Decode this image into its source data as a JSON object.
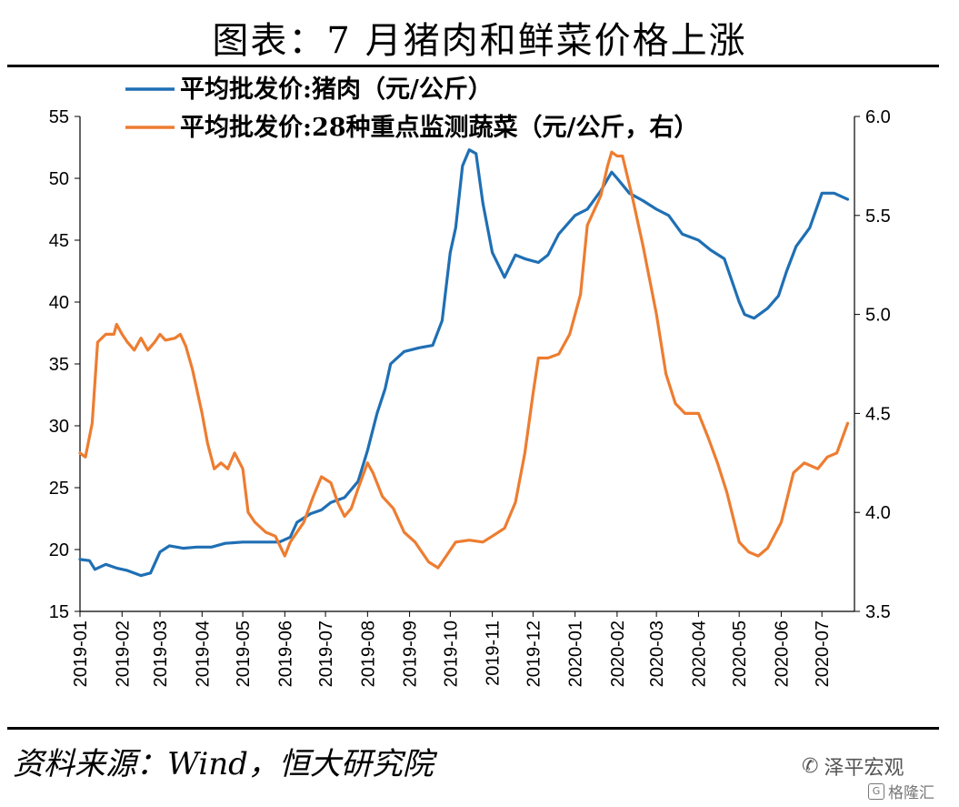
{
  "title": "图表：7 月猪肉和鲜菜价格上涨",
  "source": "资料来源：Wind，恒大研究院",
  "watermark": {
    "text": "泽平宏观",
    "logo_text": "格隆汇",
    "logo_mark": "G"
  },
  "chart_data": {
    "type": "line",
    "legend_placement": "top-left",
    "grid": false,
    "x_ticks": [
      "2019-01",
      "2019-02",
      "2019-03",
      "2019-04",
      "2019-05",
      "2019-06",
      "2019-07",
      "2019-08",
      "2019-09",
      "2019-10",
      "2019-11",
      "2019-12",
      "2020-01",
      "2020-02",
      "2020-03",
      "2020-04",
      "2020-05",
      "2020-06",
      "2020-07"
    ],
    "y_left": {
      "ticks": [
        "15",
        "20",
        "25",
        "30",
        "35",
        "40",
        "45",
        "50",
        "55"
      ],
      "lim": [
        15,
        55
      ]
    },
    "y_right": {
      "ticks": [
        "3.5",
        "4.0",
        "4.5",
        "5.0",
        "5.5",
        "6.0"
      ],
      "lim": [
        3.5,
        6.0
      ]
    },
    "series": [
      {
        "name": "平均批发价:猪肉（元/公斤）",
        "axis": "left",
        "color": "#1f6fb4",
        "points": [
          [
            "2019-01-01",
            19.2
          ],
          [
            "2019-01-08",
            19.1
          ],
          [
            "2019-01-12",
            18.4
          ],
          [
            "2019-01-20",
            18.8
          ],
          [
            "2019-01-28",
            18.5
          ],
          [
            "2019-02-05",
            18.3
          ],
          [
            "2019-02-15",
            17.9
          ],
          [
            "2019-02-22",
            18.1
          ],
          [
            "2019-03-01",
            19.8
          ],
          [
            "2019-03-08",
            20.3
          ],
          [
            "2019-03-18",
            20.1
          ],
          [
            "2019-03-28",
            20.2
          ],
          [
            "2019-04-08",
            20.2
          ],
          [
            "2019-04-18",
            20.5
          ],
          [
            "2019-05-01",
            20.6
          ],
          [
            "2019-05-15",
            20.6
          ],
          [
            "2019-05-28",
            20.6
          ],
          [
            "2019-06-05",
            21.0
          ],
          [
            "2019-06-10",
            22.2
          ],
          [
            "2019-06-20",
            22.9
          ],
          [
            "2019-06-28",
            23.2
          ],
          [
            "2019-07-05",
            23.8
          ],
          [
            "2019-07-15",
            24.2
          ],
          [
            "2019-07-25",
            25.5
          ],
          [
            "2019-08-01",
            28.0
          ],
          [
            "2019-08-08",
            31.0
          ],
          [
            "2019-08-14",
            33.0
          ],
          [
            "2019-08-18",
            35.0
          ],
          [
            "2019-08-28",
            36.0
          ],
          [
            "2019-09-08",
            36.3
          ],
          [
            "2019-09-18",
            36.5
          ],
          [
            "2019-09-25",
            38.5
          ],
          [
            "2019-10-01",
            44.0
          ],
          [
            "2019-10-05",
            46.0
          ],
          [
            "2019-10-10",
            51.0
          ],
          [
            "2019-10-15",
            52.3
          ],
          [
            "2019-10-20",
            52.0
          ],
          [
            "2019-10-25",
            48.0
          ],
          [
            "2019-11-01",
            44.0
          ],
          [
            "2019-11-10",
            42.0
          ],
          [
            "2019-11-18",
            43.8
          ],
          [
            "2019-11-25",
            43.5
          ],
          [
            "2019-12-05",
            43.2
          ],
          [
            "2019-12-12",
            43.8
          ],
          [
            "2019-12-20",
            45.5
          ],
          [
            "2020-01-01",
            47.0
          ],
          [
            "2020-01-10",
            47.5
          ],
          [
            "2020-01-20",
            49.0
          ],
          [
            "2020-01-28",
            50.5
          ],
          [
            "2020-02-01",
            50.0
          ],
          [
            "2020-02-10",
            48.8
          ],
          [
            "2020-02-20",
            48.2
          ],
          [
            "2020-03-01",
            47.5
          ],
          [
            "2020-03-10",
            47.0
          ],
          [
            "2020-03-20",
            45.5
          ],
          [
            "2020-04-01",
            45.0
          ],
          [
            "2020-04-10",
            44.2
          ],
          [
            "2020-04-20",
            43.5
          ],
          [
            "2020-05-01",
            40.0
          ],
          [
            "2020-05-05",
            39.0
          ],
          [
            "2020-05-12",
            38.7
          ],
          [
            "2020-05-22",
            39.5
          ],
          [
            "2020-05-30",
            40.5
          ],
          [
            "2020-06-05",
            42.5
          ],
          [
            "2020-06-12",
            44.5
          ],
          [
            "2020-06-22",
            46.0
          ],
          [
            "2020-07-01",
            48.8
          ],
          [
            "2020-07-10",
            48.8
          ],
          [
            "2020-07-20",
            48.3
          ]
        ]
      },
      {
        "name": "平均批发价:28种重点监测蔬菜（元/公斤，右）",
        "axis": "right",
        "color": "#ed7d31",
        "points": [
          [
            "2019-01-01",
            4.3
          ],
          [
            "2019-01-05",
            4.28
          ],
          [
            "2019-01-10",
            4.45
          ],
          [
            "2019-01-14",
            4.86
          ],
          [
            "2019-01-20",
            4.9
          ],
          [
            "2019-01-26",
            4.9
          ],
          [
            "2019-01-28",
            4.95
          ],
          [
            "2019-02-01",
            4.9
          ],
          [
            "2019-02-05",
            4.86
          ],
          [
            "2019-02-10",
            4.82
          ],
          [
            "2019-02-15",
            4.88
          ],
          [
            "2019-02-20",
            4.82
          ],
          [
            "2019-02-25",
            4.86
          ],
          [
            "2019-03-01",
            4.9
          ],
          [
            "2019-03-05",
            4.87
          ],
          [
            "2019-03-12",
            4.88
          ],
          [
            "2019-03-16",
            4.9
          ],
          [
            "2019-03-20",
            4.84
          ],
          [
            "2019-03-25",
            4.72
          ],
          [
            "2019-04-01",
            4.5
          ],
          [
            "2019-04-05",
            4.35
          ],
          [
            "2019-04-10",
            4.22
          ],
          [
            "2019-04-15",
            4.25
          ],
          [
            "2019-04-20",
            4.22
          ],
          [
            "2019-04-25",
            4.3
          ],
          [
            "2019-05-01",
            4.22
          ],
          [
            "2019-05-05",
            4.0
          ],
          [
            "2019-05-10",
            3.95
          ],
          [
            "2019-05-18",
            3.9
          ],
          [
            "2019-05-25",
            3.88
          ],
          [
            "2019-06-01",
            3.78
          ],
          [
            "2019-06-05",
            3.85
          ],
          [
            "2019-06-10",
            3.9
          ],
          [
            "2019-06-15",
            3.95
          ],
          [
            "2019-06-22",
            4.08
          ],
          [
            "2019-06-28",
            4.18
          ],
          [
            "2019-07-05",
            4.15
          ],
          [
            "2019-07-10",
            4.05
          ],
          [
            "2019-07-15",
            3.98
          ],
          [
            "2019-07-20",
            4.02
          ],
          [
            "2019-07-25",
            4.12
          ],
          [
            "2019-08-01",
            4.25
          ],
          [
            "2019-08-05",
            4.2
          ],
          [
            "2019-08-12",
            4.08
          ],
          [
            "2019-08-20",
            4.02
          ],
          [
            "2019-08-28",
            3.9
          ],
          [
            "2019-09-05",
            3.85
          ],
          [
            "2019-09-15",
            3.75
          ],
          [
            "2019-09-22",
            3.72
          ],
          [
            "2019-09-28",
            3.78
          ],
          [
            "2019-10-05",
            3.85
          ],
          [
            "2019-10-15",
            3.86
          ],
          [
            "2019-10-25",
            3.85
          ],
          [
            "2019-11-01",
            3.88
          ],
          [
            "2019-11-10",
            3.92
          ],
          [
            "2019-11-18",
            4.05
          ],
          [
            "2019-11-25",
            4.3
          ],
          [
            "2019-12-01",
            4.6
          ],
          [
            "2019-12-05",
            4.78
          ],
          [
            "2019-12-12",
            4.78
          ],
          [
            "2019-12-20",
            4.8
          ],
          [
            "2019-12-28",
            4.9
          ],
          [
            "2020-01-05",
            5.1
          ],
          [
            "2020-01-10",
            5.45
          ],
          [
            "2020-01-20",
            5.6
          ],
          [
            "2020-01-25",
            5.75
          ],
          [
            "2020-01-28",
            5.82
          ],
          [
            "2020-02-01",
            5.8
          ],
          [
            "2020-02-05",
            5.8
          ],
          [
            "2020-02-12",
            5.6
          ],
          [
            "2020-02-20",
            5.35
          ],
          [
            "2020-03-01",
            5.0
          ],
          [
            "2020-03-08",
            4.7
          ],
          [
            "2020-03-15",
            4.55
          ],
          [
            "2020-03-22",
            4.5
          ],
          [
            "2020-04-01",
            4.5
          ],
          [
            "2020-04-08",
            4.38
          ],
          [
            "2020-04-15",
            4.25
          ],
          [
            "2020-04-22",
            4.1
          ],
          [
            "2020-05-01",
            3.85
          ],
          [
            "2020-05-08",
            3.8
          ],
          [
            "2020-05-15",
            3.78
          ],
          [
            "2020-05-22",
            3.82
          ],
          [
            "2020-06-01",
            3.95
          ],
          [
            "2020-06-10",
            4.2
          ],
          [
            "2020-06-18",
            4.25
          ],
          [
            "2020-06-28",
            4.22
          ],
          [
            "2020-07-05",
            4.28
          ],
          [
            "2020-07-12",
            4.3
          ],
          [
            "2020-07-20",
            4.45
          ]
        ]
      }
    ]
  }
}
